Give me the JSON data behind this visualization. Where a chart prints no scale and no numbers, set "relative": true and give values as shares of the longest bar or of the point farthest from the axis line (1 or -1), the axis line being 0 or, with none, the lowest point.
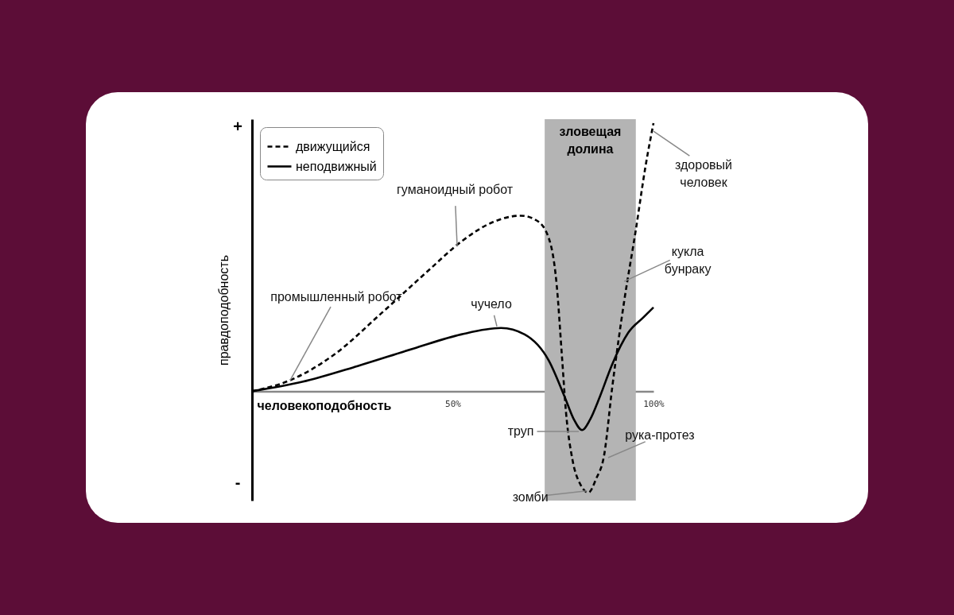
{
  "chart_data": {
    "type": "line",
    "relative": true,
    "xlabel": "человекоподобность",
    "ylabel": "правдоподобность",
    "xlim": [
      0,
      100
    ],
    "xticks": [
      {
        "value": 50,
        "label": "50%"
      },
      {
        "value": 100,
        "label": "100%"
      }
    ],
    "legend": "top left",
    "series": [
      {
        "name": "движущийся",
        "color": "#000000",
        "line_style": "dashed",
        "x": [
          0,
          9.5,
          20.4,
          32.3,
          44.2,
          52.1,
          60,
          66.9,
          70.9,
          73.9,
          75.9,
          77.2,
          78.2,
          79.8,
          81.8,
          83.8,
          85.7,
          87.7,
          89.7,
          92.7,
          95.6,
          98,
          100
        ],
        "values": [
          0,
          0.041,
          0.136,
          0.292,
          0.454,
          0.558,
          0.631,
          0.655,
          0.637,
          0.572,
          0.395,
          0.13,
          -0.077,
          -0.254,
          -0.348,
          -0.378,
          -0.327,
          -0.239,
          0.012,
          0.336,
          0.602,
          0.838,
          1.0
        ]
      },
      {
        "name": "неподвижный",
        "color": "#000000",
        "line_style": "solid",
        "x": [
          0,
          12.5,
          26.3,
          40.2,
          52.1,
          62,
          67.9,
          73.9,
          77.8,
          80.2,
          82.2,
          84.2,
          86.7,
          89.7,
          93.7,
          97.6,
          100
        ],
        "values": [
          0,
          0.035,
          0.094,
          0.159,
          0.212,
          0.236,
          0.212,
          0.115,
          -0.018,
          -0.106,
          -0.145,
          -0.106,
          -0.018,
          0.1,
          0.218,
          0.277,
          0.313
        ]
      }
    ],
    "bands": [
      {
        "axis": "x",
        "from": 72.9,
        "to": 95.6,
        "label": "зловещая долина",
        "color": "#b4b4b4"
      }
    ],
    "annotations": [
      "+",
      "-",
      {
        "text": "промышленный робот",
        "x": 9.5,
        "y": 0.041
      },
      {
        "text": "гуманоидный робот",
        "x": 51.1,
        "y": 0.54
      },
      {
        "text": "чучело",
        "x": 61,
        "y": 0.242
      },
      {
        "text": "труп",
        "x": 81.4,
        "y": -0.15
      },
      {
        "text": "зомби",
        "x": 83.4,
        "y": -0.372
      },
      {
        "text": "рука-протез",
        "x": 88.7,
        "y": -0.248
      },
      {
        "text": "кукла бунраку",
        "x": 92.7,
        "y": 0.41
      },
      {
        "text": "здоровый человек",
        "x": 100,
        "y": 0.97
      }
    ]
  }
}
